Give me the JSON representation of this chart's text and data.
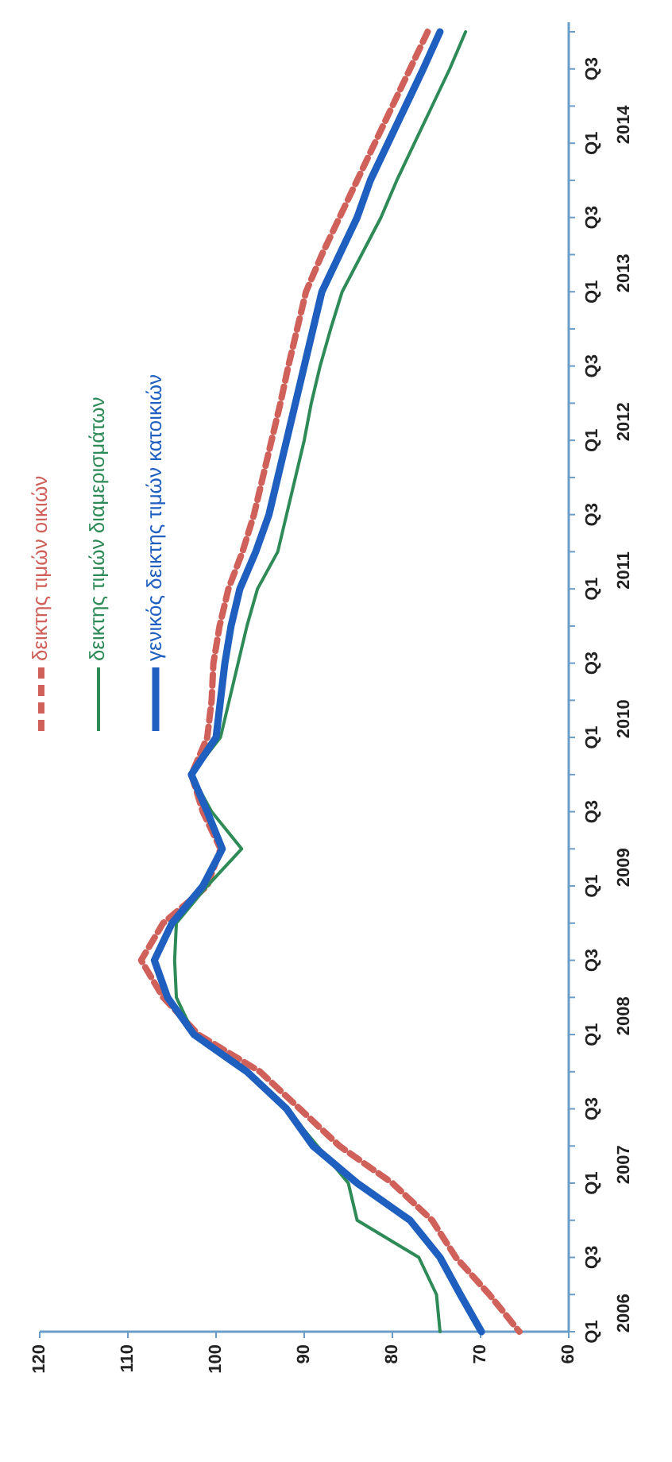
{
  "chart_data": {
    "type": "line",
    "orientation": "horizontal",
    "categories": [
      null,
      "Q3",
      null,
      "Q1",
      null,
      "Q3",
      null,
      "Q1",
      null,
      "Q3",
      null,
      "Q1",
      null,
      "Q3",
      null,
      "Q1",
      null,
      "Q3",
      null,
      "Q1",
      null,
      "Q3",
      null,
      "Q1",
      null,
      "Q3",
      null,
      "Q1",
      null,
      "Q3",
      null,
      "Q1",
      null,
      "Q3",
      null,
      "Q1"
    ],
    "series": [
      {
        "name": "δεικτης τιμών οικιών",
        "color": "#d0605a",
        "line_style": "dashed",
        "values": [
          76,
          78,
          80,
          82,
          84,
          86,
          88,
          89.8,
          90.8,
          91.8,
          92.7,
          93.7,
          94.7,
          95.7,
          97,
          98.6,
          99.6,
          100.3,
          100.5,
          101,
          102.8,
          101.5,
          99.5,
          101,
          106,
          108.5,
          106,
          102,
          95,
          90.5,
          86,
          80,
          75.5,
          72.8,
          69,
          65.6
        ]
      },
      {
        "name": "δεικτης τιμών διαμερισμάτων",
        "color": "#2e8b57",
        "line_style": "solid",
        "values": [
          71.7,
          73.5,
          75.5,
          77.5,
          79.5,
          81.3,
          83.5,
          85.7,
          87,
          88.2,
          89.2,
          90,
          91,
          92,
          93,
          95.3,
          96.5,
          97.5,
          98.5,
          99.5,
          102.8,
          100.5,
          97.1,
          101,
          104.5,
          104.7,
          104.5,
          102.5,
          96.5,
          92,
          88.5,
          85,
          84,
          77,
          75,
          74.6
        ]
      },
      {
        "name": "γενικός δεικτης τιμών κατοικιών",
        "color": "#1f5fbf",
        "line_style": "solid",
        "values": [
          74.6,
          76.5,
          78.5,
          80.5,
          82.5,
          84,
          86,
          88,
          89,
          90,
          91,
          92,
          93,
          94,
          95.5,
          97.3,
          98.3,
          99,
          99.5,
          100,
          102.8,
          101,
          99.3,
          101.5,
          105,
          107,
          105.5,
          102.5,
          96.5,
          92,
          89,
          84,
          78,
          74.6,
          72.3,
          69.9
        ]
      }
    ],
    "xlim": [
      120,
      60
    ],
    "xticks": [
      120,
      110,
      100,
      90,
      80,
      70,
      60
    ],
    "annotations": [
      "2014",
      "2013",
      "2012",
      "2011",
      "2010",
      "2009",
      "2008",
      "2007",
      "2006"
    ],
    "legend": "top left",
    "grid": false
  }
}
